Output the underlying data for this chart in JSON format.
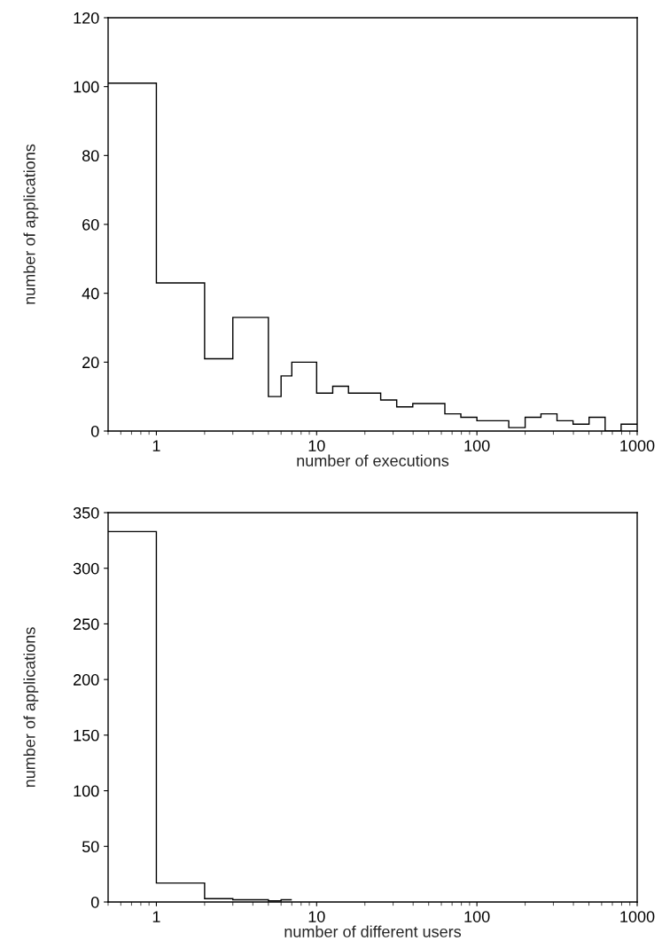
{
  "chart_data": [
    {
      "type": "histogram",
      "xlabel": "number of executions",
      "ylabel": "number of applications",
      "log": "x",
      "grid": false,
      "color": "#000000",
      "bins": [
        0.5,
        1,
        2,
        3,
        5,
        6,
        7,
        10,
        12.6,
        15.8,
        25.1,
        31.6,
        39.8,
        63.1,
        79.4,
        100,
        158,
        200,
        251,
        316,
        398,
        501,
        631,
        794,
        1000
      ],
      "values": [
        101,
        43,
        21,
        33,
        10,
        16,
        20,
        11,
        13,
        11,
        9,
        7,
        8,
        5,
        4,
        3,
        1,
        4,
        5,
        3,
        2,
        4,
        0,
        2
      ],
      "xlim": [
        0.5,
        1000
      ],
      "xticks": [
        1,
        10,
        100,
        1000
      ],
      "ylim": [
        0,
        120
      ],
      "yticks": [
        0,
        20,
        40,
        60,
        80,
        100,
        120
      ]
    },
    {
      "type": "histogram",
      "xlabel": "number of different users",
      "ylabel": "number of applications",
      "log": "x",
      "grid": false,
      "color": "#000000",
      "bins": [
        0.5,
        1,
        2,
        3,
        5,
        6,
        7
      ],
      "values": [
        333,
        17,
        3,
        2,
        1,
        2
      ],
      "xlim": [
        0.5,
        1000
      ],
      "xticks": [
        1,
        10,
        100,
        1000
      ],
      "ylim": [
        0,
        350
      ],
      "yticks": [
        0,
        50,
        100,
        150,
        200,
        250,
        300,
        350
      ]
    }
  ]
}
